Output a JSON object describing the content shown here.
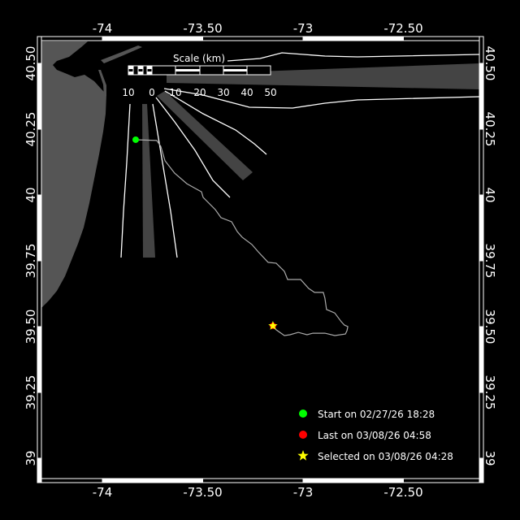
{
  "map": {
    "lon_ticks": [
      "-74",
      "-73.50",
      "-73",
      "-72.50"
    ],
    "lon_tick_values": [
      -74,
      -73.5,
      -73,
      -72.5
    ],
    "lat_ticks": [
      "40.50",
      "40.25",
      "40",
      "39.75",
      "39.50",
      "39.25",
      "39"
    ],
    "lat_tick_values": [
      40.5,
      40.25,
      40,
      39.75,
      39.5,
      39.25,
      39
    ],
    "extent": {
      "lon": [
        -74.31,
        -72.25
      ],
      "lat": [
        38.92,
        40.59
      ]
    },
    "colors": {
      "background": "#000000",
      "land": "#555555",
      "lanes": "#444444",
      "track": "#aaaaaa",
      "start": "#00ff00",
      "last": "#ff0000",
      "selected": "#ffff00"
    }
  },
  "scale": {
    "title": "Scale (km)",
    "labels": [
      "10",
      "0",
      "10",
      "20",
      "30",
      "40",
      "50"
    ]
  },
  "track": {
    "points": [
      [
        -73.834,
        40.21
      ],
      [
        -73.729,
        40.207
      ],
      [
        -73.709,
        40.185
      ],
      [
        -73.688,
        40.13
      ],
      [
        -73.64,
        40.083
      ],
      [
        -73.579,
        40.043
      ],
      [
        -73.506,
        40.012
      ],
      [
        -73.498,
        39.991
      ],
      [
        -73.437,
        39.944
      ],
      [
        -73.409,
        39.914
      ],
      [
        -73.356,
        39.898
      ],
      [
        -73.328,
        39.861
      ],
      [
        -73.304,
        39.84
      ],
      [
        -73.255,
        39.812
      ],
      [
        -73.223,
        39.784
      ],
      [
        -73.174,
        39.744
      ],
      [
        -73.134,
        39.741
      ],
      [
        -73.093,
        39.71
      ],
      [
        -73.077,
        39.679
      ],
      [
        -73.012,
        39.679
      ],
      [
        -72.972,
        39.645
      ],
      [
        -72.943,
        39.63
      ],
      [
        -72.899,
        39.63
      ],
      [
        -72.891,
        39.608
      ],
      [
        -72.883,
        39.565
      ],
      [
        -72.842,
        39.552
      ],
      [
        -72.81,
        39.519
      ],
      [
        -72.794,
        39.506
      ],
      [
        -72.777,
        39.5
      ],
      [
        -72.781,
        39.485
      ],
      [
        -72.789,
        39.472
      ],
      [
        -72.842,
        39.466
      ],
      [
        -72.891,
        39.475
      ],
      [
        -72.951,
        39.475
      ],
      [
        -72.98,
        39.469
      ],
      [
        -73.024,
        39.478
      ],
      [
        -73.065,
        39.469
      ],
      [
        -73.093,
        39.466
      ],
      [
        -73.134,
        39.488
      ],
      [
        -73.15,
        39.503
      ]
    ],
    "start": [
      -73.834,
      40.21
    ],
    "last": [
      -73.15,
      39.503
    ],
    "selected": [
      -73.15,
      39.503
    ]
  },
  "legend": {
    "start": {
      "label": "Start on 02/27/26 18:28",
      "icon": "green-circle"
    },
    "last": {
      "label": "Last on 03/08/26 04:58",
      "icon": "red-circle"
    },
    "selected": {
      "label": "Selected on 03/08/26 04:28",
      "icon": "yellow-star"
    }
  }
}
